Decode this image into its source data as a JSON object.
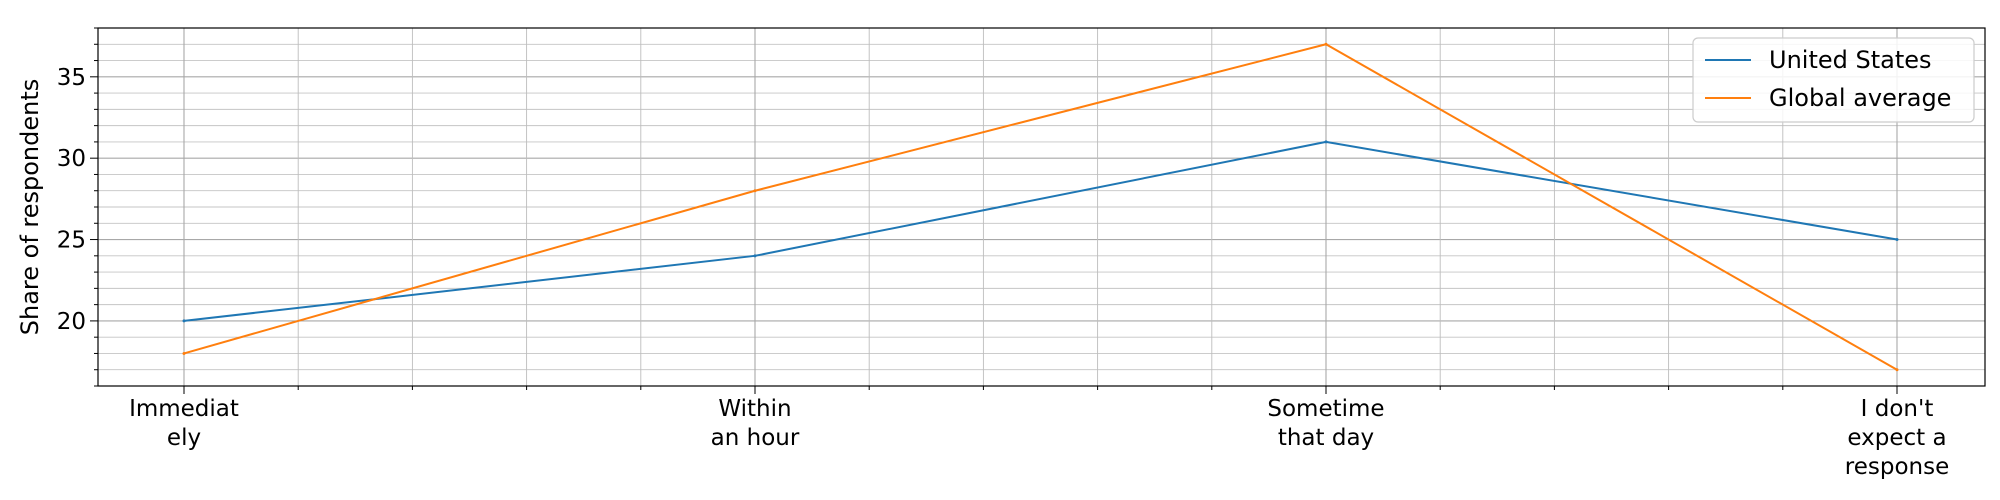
{
  "chart_data": {
    "type": "line",
    "categories": [
      [
        "Immediat",
        "ely"
      ],
      [
        "Within",
        "an hour"
      ],
      [
        "Sometime",
        "that day"
      ],
      [
        "I don't",
        "expect a",
        "response"
      ]
    ],
    "series": [
      {
        "name": "United States",
        "values": [
          20,
          24,
          31,
          25
        ],
        "color": "#1f77b4"
      },
      {
        "name": "Global average",
        "values": [
          18,
          28,
          37,
          17
        ],
        "color": "#ff7f0e"
      }
    ],
    "xlabel": "",
    "ylabel": "Share of respondents",
    "ylim": [
      16,
      38
    ],
    "yticks": [
      20,
      25,
      30,
      35
    ],
    "grid": true,
    "legend_position": "top-right"
  }
}
